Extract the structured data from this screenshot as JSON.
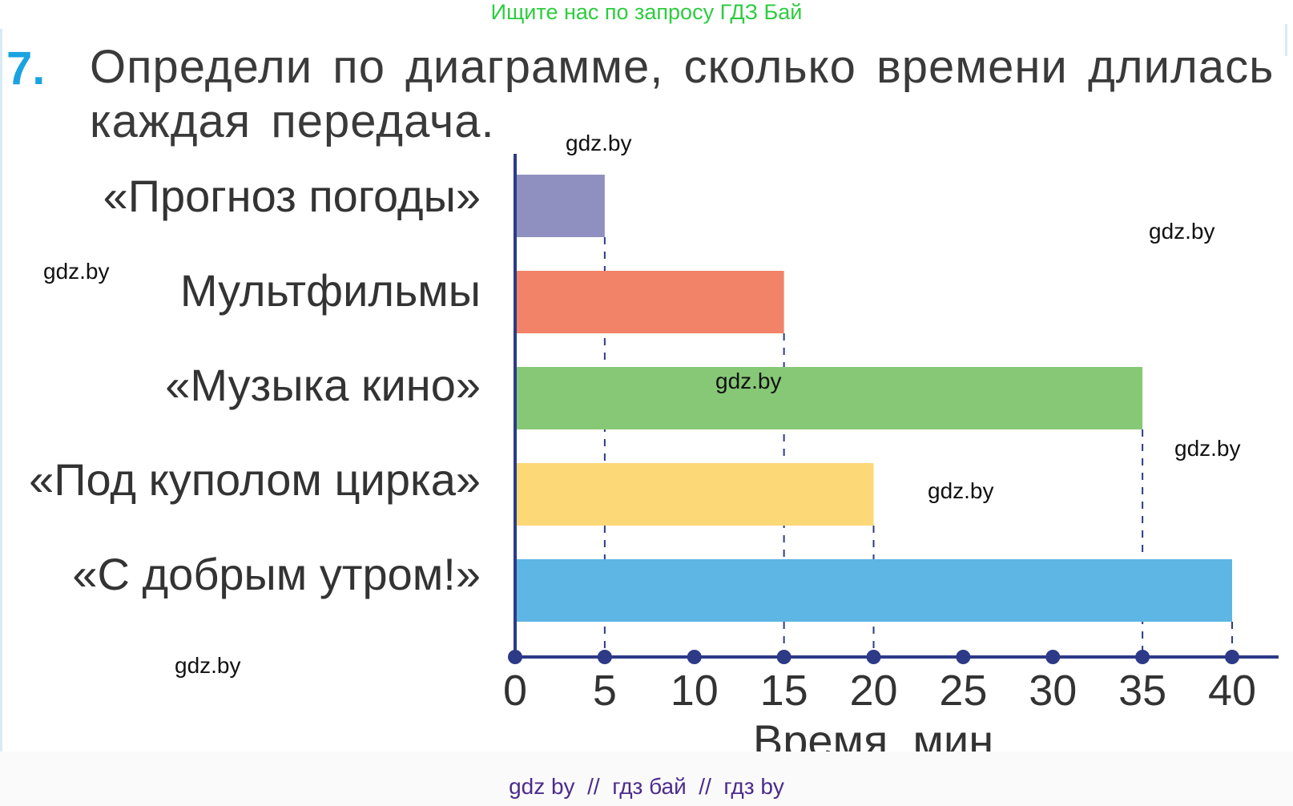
{
  "banner": "Ищите нас по запросу ГДЗ Бай",
  "task": {
    "number": "7.",
    "text": "Определи по диаграмме, сколько времени длилась каждая передача."
  },
  "chart_data": {
    "type": "bar",
    "orientation": "horizontal",
    "categories": [
      "«Прогноз погоды»",
      "Мультфильмы",
      "«Музыка кино»",
      "«Под куполом цирка»",
      "«С добрым утром!»"
    ],
    "values": [
      5,
      15,
      35,
      20,
      40
    ],
    "colors": [
      "#9090c0",
      "#f28268",
      "#86c876",
      "#fdd876",
      "#5eb6e4"
    ],
    "xlabel": "Время, мин",
    "xticks": [
      0,
      5,
      10,
      15,
      20,
      25,
      30,
      35,
      40
    ],
    "xlim": [
      0,
      40
    ],
    "axis_color": "#2d3a87",
    "grid": false,
    "guides": "dashed drop lines from bar ends to axis"
  },
  "watermarks": [
    "gdz.by",
    "gdz.by",
    "gdz.by",
    "gdz.by",
    "gdz.by",
    "gdz.by",
    "gdz.by"
  ],
  "footer": "gdz by  //  гдз бай  //  гдз by"
}
